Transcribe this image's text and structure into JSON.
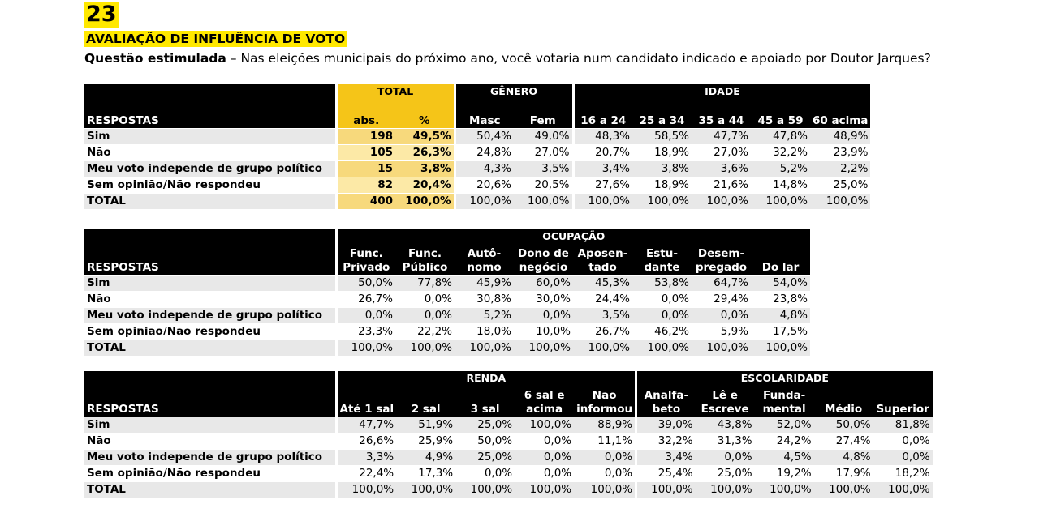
{
  "page": {
    "number": "23",
    "title": "AVALIAÇÃO DE INFLUÊNCIA DE VOTO",
    "question_lead": "Questão estimulada",
    "question_text": " – Nas eleições municipais do próximo ano, você votaria num candidato indicado e apoiado por Doutor Jarques?"
  },
  "table1": {
    "groups": {
      "total": "TOTAL",
      "genero": "GÊNERO",
      "idade": "IDADE"
    },
    "headers": [
      "RESPOSTAS",
      "abs.",
      "%",
      "Masc",
      "Fem",
      "16 a 24",
      "25 a 34",
      "35 a 44",
      "45 a 59",
      "60 acima"
    ],
    "rows": [
      [
        "Sim",
        "198",
        "49,5%",
        "50,4%",
        "49,0%",
        "48,3%",
        "58,5%",
        "47,7%",
        "47,8%",
        "48,9%"
      ],
      [
        "Não",
        "105",
        "26,3%",
        "24,8%",
        "27,0%",
        "20,7%",
        "18,9%",
        "27,0%",
        "32,2%",
        "23,9%"
      ],
      [
        "Meu voto independe de grupo político",
        "15",
        "3,8%",
        "4,3%",
        "3,5%",
        "3,4%",
        "3,8%",
        "3,6%",
        "5,2%",
        "2,2%"
      ],
      [
        "Sem opinião/Não respondeu",
        "82",
        "20,4%",
        "20,6%",
        "20,5%",
        "27,6%",
        "18,9%",
        "21,6%",
        "14,8%",
        "25,0%"
      ],
      [
        "TOTAL",
        "400",
        "100,0%",
        "100,0%",
        "100,0%",
        "100,0%",
        "100,0%",
        "100,0%",
        "100,0%",
        "100,0%"
      ]
    ]
  },
  "table2": {
    "group": "OCUPAÇÃO",
    "headers": [
      [
        "RESPOSTAS",
        ""
      ],
      [
        "Func.",
        "Privado"
      ],
      [
        "Func.",
        "Público"
      ],
      [
        "Autô-",
        "nomo"
      ],
      [
        "Dono de",
        "negócio"
      ],
      [
        "Aposen-",
        "tado"
      ],
      [
        "Estu-",
        "dante"
      ],
      [
        "Desem-",
        "pregado"
      ],
      [
        "",
        "Do lar"
      ]
    ],
    "rows": [
      [
        "Sim",
        "50,0%",
        "77,8%",
        "45,9%",
        "60,0%",
        "45,3%",
        "53,8%",
        "64,7%",
        "54,0%"
      ],
      [
        "Não",
        "26,7%",
        "0,0%",
        "30,8%",
        "30,0%",
        "24,4%",
        "0,0%",
        "29,4%",
        "23,8%"
      ],
      [
        "Meu voto independe de grupo político",
        "0,0%",
        "0,0%",
        "5,2%",
        "0,0%",
        "3,5%",
        "0,0%",
        "0,0%",
        "4,8%"
      ],
      [
        "Sem opinião/Não respondeu",
        "23,3%",
        "22,2%",
        "18,0%",
        "10,0%",
        "26,7%",
        "46,2%",
        "5,9%",
        "17,5%"
      ],
      [
        "TOTAL",
        "100,0%",
        "100,0%",
        "100,0%",
        "100,0%",
        "100,0%",
        "100,0%",
        "100,0%",
        "100,0%"
      ]
    ]
  },
  "table3": {
    "groups": {
      "renda": "RENDA",
      "escolaridade": "ESCOLARIDADE"
    },
    "headers": [
      [
        "RESPOSTAS",
        ""
      ],
      [
        "",
        "Até 1 sal"
      ],
      [
        "",
        "2 sal"
      ],
      [
        "",
        "3 sal"
      ],
      [
        "6 sal e",
        "acima"
      ],
      [
        "Não",
        "informou"
      ],
      [
        "Analfa-",
        "beto"
      ],
      [
        "Lê e",
        "Escreve"
      ],
      [
        "Funda-",
        "mental"
      ],
      [
        "",
        "Médio"
      ],
      [
        "",
        "Superior"
      ]
    ],
    "rows": [
      [
        "Sim",
        "47,7%",
        "51,9%",
        "25,0%",
        "100,0%",
        "88,9%",
        "39,0%",
        "43,8%",
        "52,0%",
        "50,0%",
        "81,8%"
      ],
      [
        "Não",
        "26,6%",
        "25,9%",
        "50,0%",
        "0,0%",
        "11,1%",
        "32,2%",
        "31,3%",
        "24,2%",
        "27,4%",
        "0,0%"
      ],
      [
        "Meu voto independe de grupo político",
        "3,3%",
        "4,9%",
        "25,0%",
        "0,0%",
        "0,0%",
        "3,4%",
        "0,0%",
        "4,5%",
        "4,8%",
        "0,0%"
      ],
      [
        "Sem opinião/Não respondeu",
        "22,4%",
        "17,3%",
        "0,0%",
        "0,0%",
        "0,0%",
        "25,4%",
        "25,0%",
        "19,2%",
        "17,9%",
        "18,2%"
      ],
      [
        "TOTAL",
        "100,0%",
        "100,0%",
        "100,0%",
        "100,0%",
        "100,0%",
        "100,0%",
        "100,0%",
        "100,0%",
        "100,0%",
        "100,0%"
      ]
    ]
  }
}
